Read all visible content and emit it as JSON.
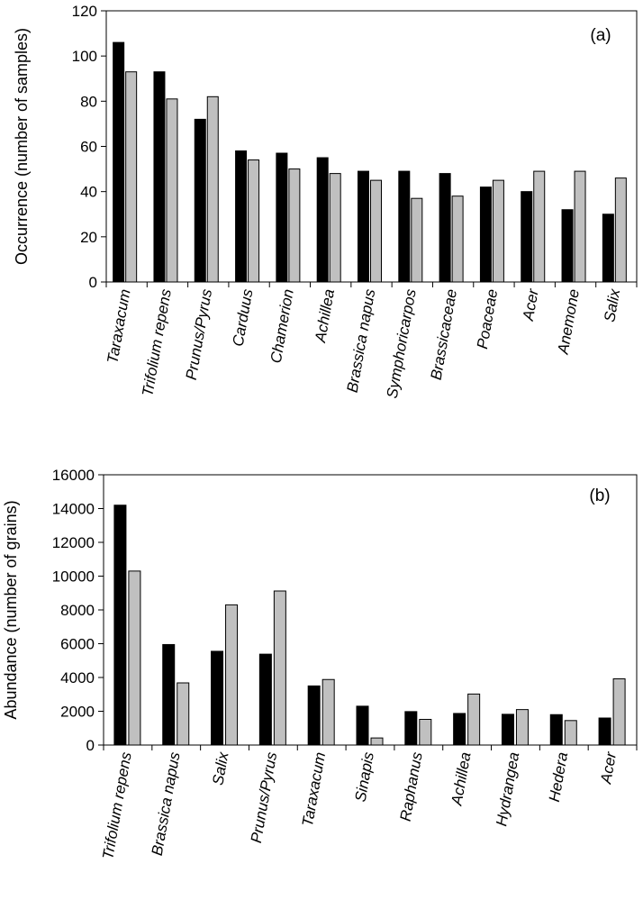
{
  "chart_data": [
    {
      "type": "bar",
      "panel_label": "(a)",
      "ylabel": "Occurrence (number of samples)",
      "xlabel": "",
      "ylim": [
        0,
        120
      ],
      "yticks": [
        0,
        20,
        40,
        60,
        80,
        100,
        120
      ],
      "categories": [
        "Taraxacum",
        "Trifolium repens",
        "Prunus/Pyrus",
        "Carduus",
        "Chamerion",
        "Achillea",
        "Brassica napus",
        "Symphoricarpos",
        "Brassicaceae",
        "Poaceae",
        "Acer",
        "Anemone",
        "Salix"
      ],
      "series": [
        {
          "color": "#000000",
          "values": [
            106,
            93,
            72,
            58,
            57,
            55,
            49,
            49,
            48,
            42,
            40,
            32,
            30
          ]
        },
        {
          "color": "#c0c0c0",
          "values": [
            93,
            81,
            82,
            54,
            50,
            48,
            45,
            37,
            38,
            45,
            49,
            49,
            46
          ]
        }
      ],
      "grid": false
    },
    {
      "type": "bar",
      "panel_label": "(b)",
      "ylabel": "Abundance (number of grains)",
      "xlabel": "",
      "ylim": [
        0,
        16000
      ],
      "yticks": [
        0,
        2000,
        4000,
        6000,
        8000,
        10000,
        12000,
        14000,
        16000
      ],
      "categories": [
        "Trifolium repens",
        "Brassica napus",
        "Salix",
        "Prunus/Pyrus",
        "Taraxacum",
        "Sinapis",
        "Raphanus",
        "Achillea",
        "Hydrangea",
        "Hedera",
        "Acer"
      ],
      "series": [
        {
          "color": "#000000",
          "values": [
            14200,
            5950,
            5550,
            5380,
            3500,
            2300,
            1980,
            1870,
            1820,
            1800,
            1600
          ]
        },
        {
          "color": "#c0c0c0",
          "values": [
            10300,
            3680,
            8300,
            9120,
            3880,
            420,
            1520,
            3020,
            2100,
            1450,
            3920
          ]
        }
      ],
      "grid": false
    }
  ]
}
